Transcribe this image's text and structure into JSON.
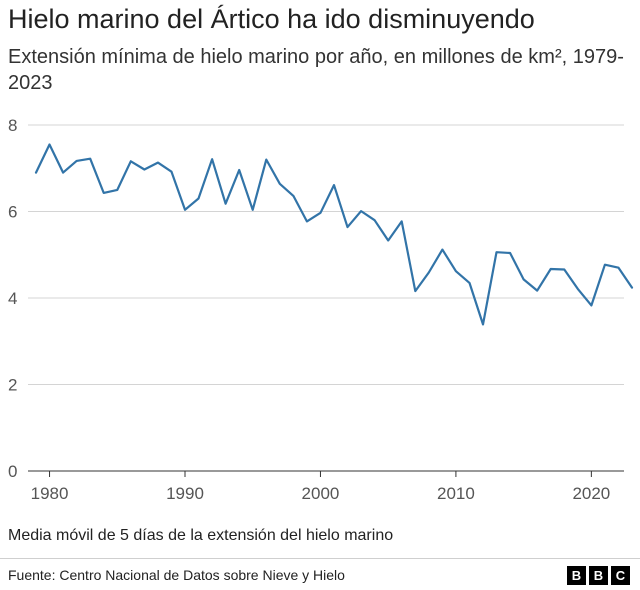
{
  "title": "Hielo marino del Ártico ha ido disminuyendo",
  "subtitle": "Extensión mínima de hielo marino por año, en millones de km², 1979-2023",
  "note": "Media móvil de 5 días de la extensión del hielo marino",
  "source": "Fuente: Centro Nacional de Datos sobre Nieve y Hielo",
  "logo_letters": [
    "B",
    "B",
    "C"
  ],
  "colors": {
    "line": "#3274a8",
    "grid": "#d4d4d4",
    "axis": "#333333"
  },
  "chart_data": {
    "type": "line",
    "title": "Hielo marino del Ártico ha ido disminuyendo",
    "subtitle": "Extensión mínima de hielo marino por año, en millones de km², 1979-2023",
    "xlabel": "",
    "ylabel": "",
    "xlim": [
      1979,
      2023
    ],
    "ylim": [
      0,
      8
    ],
    "x_ticks": [
      1980,
      1990,
      2000,
      2010,
      2020
    ],
    "y_ticks": [
      0,
      2,
      4,
      6,
      8
    ],
    "grid": true,
    "series": [
      {
        "x": [
          1979,
          1980,
          1981,
          1982,
          1983,
          1984,
          1985,
          1986,
          1987,
          1988,
          1989,
          1990,
          1991,
          1992,
          1993,
          1994,
          1995,
          1996,
          1997,
          1998,
          1999,
          2000,
          2001,
          2002,
          2003,
          2004,
          2005,
          2006,
          2007,
          2008,
          2009,
          2010,
          2011,
          2012,
          2013,
          2014,
          2015,
          2016,
          2017,
          2018,
          2019,
          2020,
          2021,
          2022,
          2023
        ],
        "values": [
          6.9,
          7.55,
          6.9,
          7.17,
          7.22,
          6.43,
          6.5,
          7.16,
          6.97,
          7.13,
          6.92,
          6.04,
          6.3,
          7.21,
          6.18,
          6.96,
          6.04,
          7.2,
          6.64,
          6.36,
          5.77,
          5.97,
          6.61,
          5.64,
          6.01,
          5.8,
          5.33,
          5.77,
          4.16,
          4.59,
          5.12,
          4.62,
          4.35,
          3.39,
          5.06,
          5.04,
          4.43,
          4.17,
          4.67,
          4.66,
          4.21,
          3.83,
          4.77,
          4.7,
          4.24
        ]
      }
    ]
  }
}
